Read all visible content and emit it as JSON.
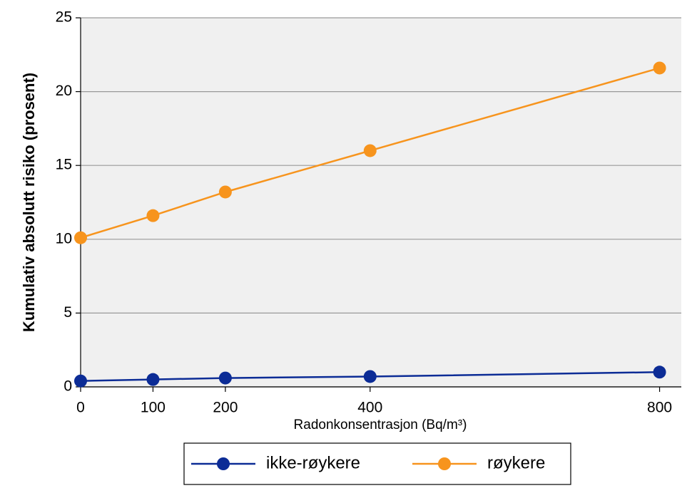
{
  "chart_data": {
    "type": "line",
    "x_label": "Radonkonsentrasjon (Bq/m³)",
    "y_label": "Kumulativ absolutt risiko (prosent)",
    "x": [
      0,
      100,
      200,
      400,
      800
    ],
    "series": [
      {
        "name": "ikke-røykere",
        "color": "#0c2c96",
        "values": [
          0.4,
          0.5,
          0.6,
          0.7,
          1.0
        ]
      },
      {
        "name": "røykere",
        "color": "#f7941d",
        "values": [
          10.1,
          11.6,
          13.2,
          16.0,
          21.6
        ]
      }
    ],
    "xlim": [
      0,
      830
    ],
    "xticks": [
      0,
      100,
      200,
      400,
      800
    ],
    "ylim": [
      0,
      25
    ],
    "yticks": [
      0,
      5,
      10,
      15,
      20,
      25
    ],
    "grid": true,
    "legend": "bottom"
  }
}
